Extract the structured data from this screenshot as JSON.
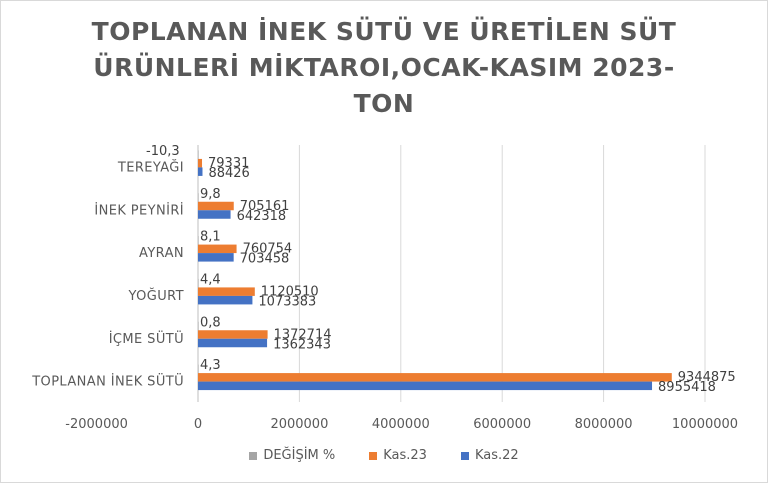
{
  "chart_data": {
    "type": "bar",
    "orientation": "horizontal",
    "title_lines": [
      "TOPLANAN İNEK SÜTÜ VE ÜRETİLEN SÜT",
      "ÜRÜNLERİ MİKTAROI,OCAK-KASIM 2023-",
      "TON"
    ],
    "categories": [
      "TOPLANAN İNEK SÜTÜ",
      "İÇME SÜTÜ",
      "YOĞURT",
      "AYRAN",
      "İNEK PEYNİRİ",
      "TEREYAĞI"
    ],
    "series": [
      {
        "name": "DEĞİŞİM %",
        "color": "#a5a5a5",
        "values": [
          4.3,
          0.8,
          4.4,
          8.1,
          9.8,
          -10.3
        ],
        "labels": [
          "4,3",
          "0,8",
          "4,4",
          "8,1",
          "9,8",
          "-10,3"
        ]
      },
      {
        "name": "Kas.23",
        "color": "#ed7d31",
        "values": [
          9344875,
          1372714,
          1120510,
          760754,
          705161,
          79331
        ],
        "labels": [
          "9344875",
          "1372714",
          "1120510",
          "760754",
          "705161",
          "79331"
        ]
      },
      {
        "name": "Kas.22",
        "color": "#4472c4",
        "values": [
          8955418,
          1362343,
          1073383,
          703458,
          642318,
          88426
        ],
        "labels": [
          "8955418",
          "1362343",
          "1073383",
          "703458",
          "642318",
          "88426"
        ]
      }
    ],
    "xlim": [
      -2000000,
      10000000
    ],
    "xticks": [
      -2000000,
      0,
      2000000,
      4000000,
      6000000,
      8000000,
      10000000
    ],
    "xtick_labels": [
      "-2000000",
      "0",
      "2000000",
      "4000000",
      "6000000",
      "8000000",
      "10000000"
    ],
    "grid": true,
    "legend_position": "bottom"
  }
}
